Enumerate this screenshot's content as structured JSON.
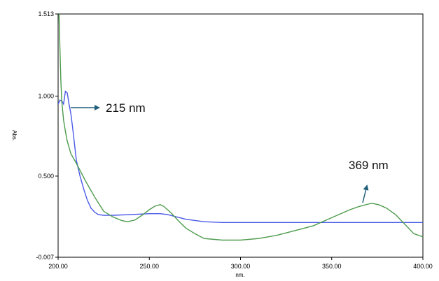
{
  "chart_data": {
    "type": "line",
    "xlabel": "nm.",
    "ylabel": "Abs.",
    "xlim": [
      200,
      400
    ],
    "ylim": [
      -0.007,
      1.513
    ],
    "x_ticks": [
      "200.00",
      "250.00",
      "300.00",
      "350.00",
      "400.00"
    ],
    "y_ticks": [
      "1.513",
      "1.000",
      "0.500",
      "-0.007"
    ],
    "grid": false,
    "series": [
      {
        "color": "#4a5ae8",
        "x": [
          200,
          201,
          202,
          203,
          204,
          205,
          206,
          207,
          208,
          209,
          210,
          212,
          214,
          216,
          218,
          220,
          222,
          225,
          230,
          240,
          250,
          256,
          260,
          265,
          270,
          280,
          290,
          300,
          350,
          400
        ],
        "y": [
          0.95,
          0.975,
          0.97,
          0.95,
          1.03,
          1.02,
          0.95,
          0.89,
          0.8,
          0.7,
          0.6,
          0.5,
          0.42,
          0.35,
          0.3,
          0.275,
          0.26,
          0.255,
          0.255,
          0.26,
          0.265,
          0.265,
          0.26,
          0.245,
          0.23,
          0.215,
          0.21,
          0.21,
          0.21,
          0.21
        ]
      },
      {
        "color": "#4c9b4c",
        "x": [
          200.5,
          201,
          201.5,
          202,
          203,
          204,
          205,
          207,
          210,
          215,
          220,
          225,
          230,
          235,
          238,
          242,
          246,
          250,
          253,
          256,
          258,
          262,
          266,
          270,
          275,
          280,
          290,
          300,
          310,
          320,
          330,
          340,
          350,
          360,
          365,
          370,
          372,
          376,
          380,
          385,
          390,
          395,
          400
        ],
        "y": [
          1.513,
          1.3,
          1.1,
          0.97,
          0.85,
          0.78,
          0.72,
          0.64,
          0.58,
          0.47,
          0.37,
          0.28,
          0.245,
          0.222,
          0.215,
          0.225,
          0.255,
          0.29,
          0.312,
          0.322,
          0.31,
          0.27,
          0.22,
          0.175,
          0.14,
          0.11,
          0.1,
          0.1,
          0.11,
          0.13,
          0.16,
          0.19,
          0.24,
          0.29,
          0.31,
          0.325,
          0.33,
          0.32,
          0.3,
          0.26,
          0.2,
          0.14,
          0.12
        ]
      }
    ],
    "annotations": [
      {
        "text": "215 nm"
      },
      {
        "text": "369 nm"
      }
    ]
  }
}
